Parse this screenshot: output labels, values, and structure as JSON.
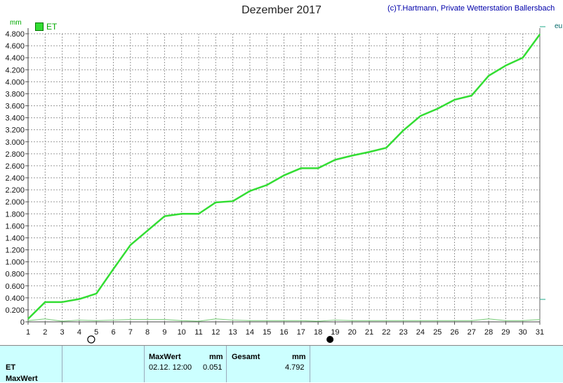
{
  "header": {
    "title": "Dezember 2017",
    "copyright": "(c)T.Hartmann, Private Wetterstation Ballersbach",
    "unit": "mm",
    "legend": "ET",
    "right_label": "eu"
  },
  "colors": {
    "series": "#33dd33",
    "grid": "#999999",
    "panel": "#ccffff"
  },
  "chart_data": {
    "type": "line",
    "title": "Dezember 2017",
    "ylabel": "mm",
    "ylim": [
      0,
      4.8
    ],
    "xlim": [
      1,
      31
    ],
    "grid": true,
    "legend_position": "top-left",
    "x_ticks": [
      1,
      2,
      3,
      4,
      5,
      6,
      7,
      8,
      9,
      10,
      11,
      12,
      13,
      14,
      15,
      16,
      17,
      18,
      19,
      20,
      21,
      22,
      23,
      24,
      25,
      26,
      27,
      28,
      29,
      30,
      31
    ],
    "y_ticks": [
      "0",
      "0.200",
      "0.400",
      "0.600",
      "0.800",
      "1.000",
      "1.200",
      "1.400",
      "1.600",
      "1.800",
      "2.000",
      "2.200",
      "2.400",
      "2.600",
      "2.800",
      "3.000",
      "3.200",
      "3.400",
      "3.600",
      "3.800",
      "4.000",
      "4.200",
      "4.400",
      "4.600",
      "4.800"
    ],
    "series": [
      {
        "name": "ET",
        "x": [
          1,
          2,
          3,
          4,
          5,
          6,
          7,
          8,
          9,
          10,
          11,
          12,
          13,
          14,
          15,
          16,
          17,
          18,
          19,
          20,
          21,
          22,
          23,
          24,
          25,
          26,
          27,
          28,
          29,
          30,
          31
        ],
        "values": [
          0.05,
          0.33,
          0.33,
          0.38,
          0.47,
          0.88,
          1.28,
          1.52,
          1.76,
          1.8,
          1.8,
          1.99,
          2.01,
          2.18,
          2.28,
          2.44,
          2.56,
          2.56,
          2.7,
          2.77,
          2.83,
          2.9,
          3.19,
          3.43,
          3.55,
          3.7,
          3.77,
          4.1,
          4.27,
          4.4,
          4.79
        ]
      },
      {
        "name": "",
        "x": [
          1,
          2,
          3,
          4,
          5,
          6,
          7,
          8,
          9,
          10,
          11,
          12,
          13,
          14,
          15,
          16,
          17,
          18,
          19,
          20,
          21,
          22,
          23,
          24,
          25,
          26,
          27,
          28,
          29,
          30,
          31
        ],
        "values": [
          0.02,
          0.05,
          0.01,
          0.03,
          0.02,
          0.03,
          0.04,
          0.04,
          0.04,
          0.02,
          0.01,
          0.05,
          0.03,
          0.02,
          0.02,
          0.02,
          0.02,
          0.01,
          0.03,
          0.02,
          0.02,
          0.02,
          0.02,
          0.02,
          0.02,
          0.02,
          0.02,
          0.05,
          0.02,
          0.02,
          0.04
        ]
      }
    ],
    "moon_markers": [
      {
        "day": 4,
        "phase": "full-moon"
      },
      {
        "day": 18,
        "phase": "new-moon"
      }
    ]
  },
  "panel": {
    "row1": "ET",
    "row2": "MaxWert",
    "max_header": "MaxWert",
    "max_unit": "mm",
    "max_date": "02.12.  12:00",
    "max_value": "0.051",
    "total_header": "Gesamt",
    "total_unit": "mm",
    "total_value": "4.792"
  }
}
